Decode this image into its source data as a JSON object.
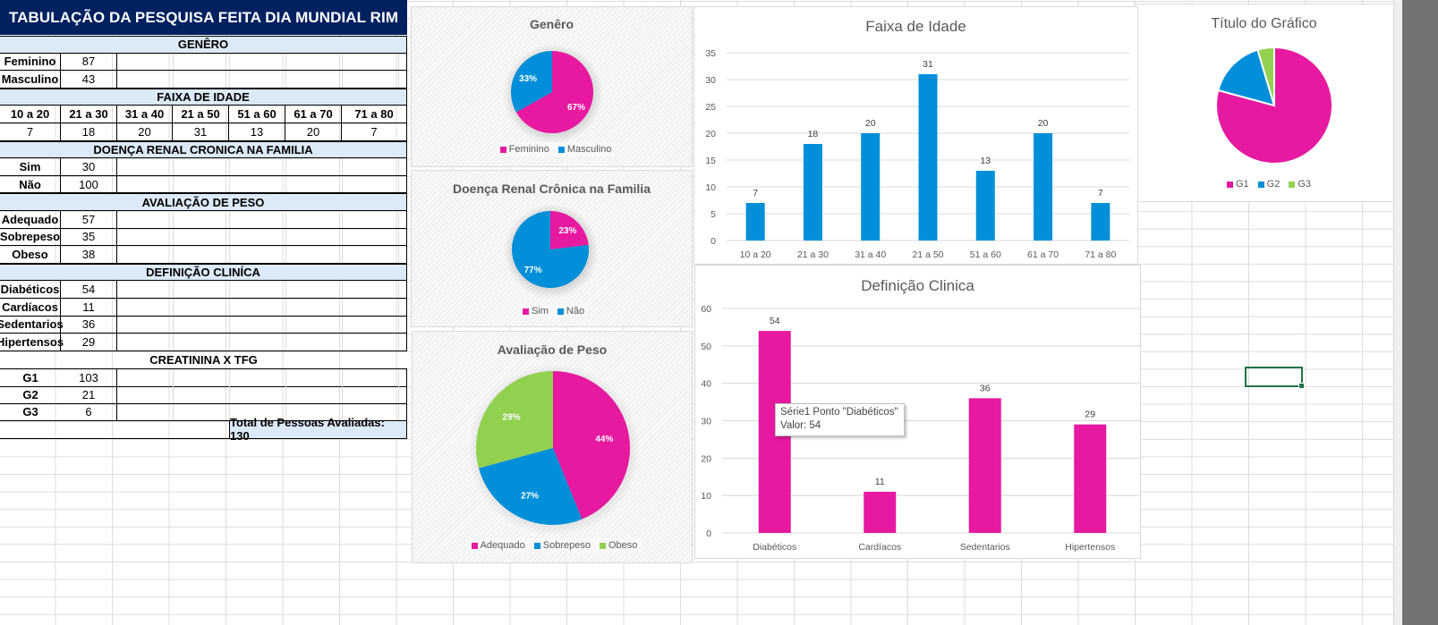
{
  "sheet": {
    "title": "TABULAÇÃO DA PESQUISA FEITA DIA MUNDIAL RIM",
    "sections": {
      "genero": {
        "header": "GENÊRO",
        "rows": [
          {
            "label": "Feminino",
            "value": "87"
          },
          {
            "label": "Masculino",
            "value": "43"
          }
        ]
      },
      "faixa": {
        "header": "FAIXA DE IDADE",
        "labels": [
          "10 a 20",
          "21 a 30",
          "31 a 40",
          "21 a 50",
          "51 a 60",
          "61 a 70",
          "71 a 80"
        ],
        "values": [
          "7",
          "18",
          "20",
          "31",
          "13",
          "20",
          "7"
        ]
      },
      "doenca": {
        "header": "DOENÇA RENAL CRONICA NA FAMILIA",
        "rows": [
          {
            "label": "Sim",
            "value": "30"
          },
          {
            "label": "Não",
            "value": "100"
          }
        ]
      },
      "peso": {
        "header": "AVALIAÇÃO DE PESO",
        "rows": [
          {
            "label": "Adequado",
            "value": "57"
          },
          {
            "label": "Sobrepeso",
            "value": "35"
          },
          {
            "label": "Obeso",
            "value": "38"
          }
        ]
      },
      "clinica": {
        "header": "DEFINIÇÃO CLINÍCA",
        "rows": [
          {
            "label": "Diabéticos",
            "value": "54"
          },
          {
            "label": "Cardíacos",
            "value": "11"
          },
          {
            "label": "Sedentarios",
            "value": "36"
          },
          {
            "label": "Hipertensos",
            "value": "29"
          }
        ]
      },
      "creatinina": {
        "header": "CREATININA X TFG",
        "rows": [
          {
            "label": "G1",
            "value": "103"
          },
          {
            "label": "G2",
            "value": "21"
          },
          {
            "label": "G3",
            "value": "6"
          }
        ]
      }
    },
    "total": "Total de Pessoas Avaliadas: 130"
  },
  "colors": {
    "pink": "#e619a0",
    "blue": "#008fd8",
    "green": "#92d050",
    "navy": "#002060",
    "section_bg": "#dce9f7",
    "selection": "#217346"
  },
  "tooltip": {
    "line1": "Série1 Ponto \"Diabéticos\"",
    "line2": "Valor: 54"
  },
  "chart_data": [
    {
      "id": "genero",
      "type": "pie",
      "title": "Genêro",
      "categories": [
        "Feminino",
        "Masculino"
      ],
      "values": [
        87,
        43
      ],
      "labels": [
        "67%",
        "33%"
      ],
      "legend": "bottom"
    },
    {
      "id": "doenca",
      "type": "pie",
      "title": "Doença Renal Crônica na Familia",
      "categories": [
        "Sim",
        "Não"
      ],
      "values": [
        30,
        100
      ],
      "labels": [
        "23%",
        "77%"
      ],
      "legend": "bottom"
    },
    {
      "id": "peso",
      "type": "pie",
      "title": "Avaliação de Peso",
      "categories": [
        "Adequado",
        "Sobrepeso",
        "Obeso"
      ],
      "values": [
        57,
        35,
        38
      ],
      "labels": [
        "44%",
        "27%",
        "29%"
      ],
      "legend": "bottom"
    },
    {
      "id": "faixa",
      "type": "bar",
      "title": "Faixa de Idade",
      "categories": [
        "10 a 20",
        "21 a 30",
        "31 a 40",
        "21 a 50",
        "51 a 60",
        "61 a 70",
        "71 a 80"
      ],
      "values": [
        7,
        18,
        20,
        31,
        13,
        20,
        7
      ],
      "ylim": [
        0,
        35
      ],
      "yticks": [
        0,
        5,
        10,
        15,
        20,
        25,
        30,
        35
      ],
      "grid": true,
      "xlabel": "",
      "ylabel": ""
    },
    {
      "id": "clinica",
      "type": "bar",
      "title": "Definição Clinica",
      "categories": [
        "Diabéticos",
        "Cardíacos",
        "Sedentarios",
        "Hipertensos"
      ],
      "values": [
        54,
        11,
        36,
        29
      ],
      "ylim": [
        0,
        60
      ],
      "yticks": [
        0,
        10,
        20,
        30,
        40,
        50,
        60
      ],
      "grid": true,
      "xlabel": "",
      "ylabel": ""
    },
    {
      "id": "creatinina",
      "type": "pie",
      "title": "Título do Gráfico",
      "categories": [
        "G1",
        "G2",
        "G3"
      ],
      "values": [
        103,
        21,
        6
      ],
      "labels": [],
      "legend": "bottom"
    }
  ]
}
